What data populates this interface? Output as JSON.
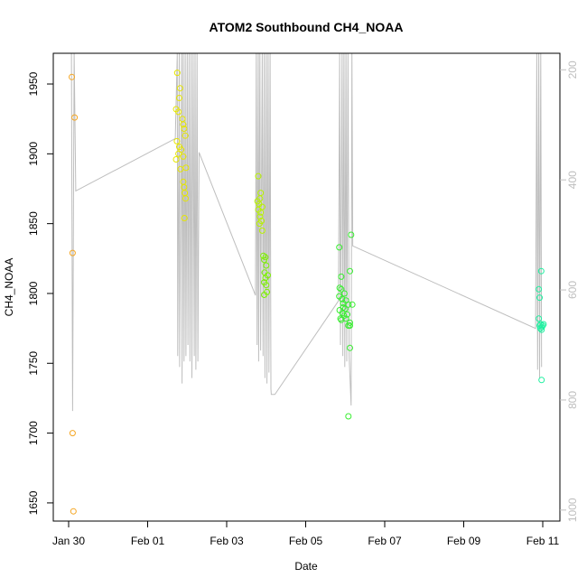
{
  "chart_data": {
    "type": "scatter",
    "title": "ATOM2 Southbound CH4_NOAA",
    "xlabel": "Date",
    "ylabel": "CH4_NOAA",
    "x_ticks": [
      {
        "label": "Jan 30",
        "day": 0
      },
      {
        "label": "Feb 01",
        "day": 2
      },
      {
        "label": "Feb 03",
        "day": 4
      },
      {
        "label": "Feb 05",
        "day": 6
      },
      {
        "label": "Feb 07",
        "day": 8
      },
      {
        "label": "Feb 09",
        "day": 10
      },
      {
        "label": "Feb 11",
        "day": 12
      }
    ],
    "y_ticks": [
      1650,
      1700,
      1750,
      1800,
      1850,
      1900,
      1950
    ],
    "ylim": [
      1637,
      1972
    ],
    "y2_ticks": [
      200,
      400,
      600,
      800,
      1000
    ],
    "y2lim": [
      170,
      1020
    ],
    "y2_reversed": true,
    "y2_tick_color": "#bebebe",
    "line_color": "#bebebe",
    "grid": false,
    "series": [
      {
        "color": "#f5a623",
        "points": [
          [
            0.08,
            1955
          ],
          [
            0.15,
            1926
          ],
          [
            0.1,
            1829
          ],
          [
            0.1,
            1700
          ],
          [
            0.12,
            1644
          ]
        ]
      },
      {
        "color": "#e6e600",
        "points": [
          [
            2.75,
            1958
          ],
          [
            2.82,
            1947
          ],
          [
            2.8,
            1940
          ],
          [
            2.72,
            1932
          ],
          [
            2.78,
            1930
          ],
          [
            2.88,
            1925
          ],
          [
            2.9,
            1921
          ],
          [
            2.92,
            1918
          ],
          [
            2.95,
            1913
          ],
          [
            2.74,
            1909
          ],
          [
            2.8,
            1905
          ],
          [
            2.85,
            1903
          ],
          [
            2.78,
            1900
          ],
          [
            2.9,
            1898
          ],
          [
            2.72,
            1896
          ],
          [
            2.83,
            1889
          ],
          [
            2.97,
            1890
          ],
          [
            2.9,
            1880
          ],
          [
            2.92,
            1876
          ],
          [
            2.94,
            1872
          ],
          [
            2.96,
            1868
          ],
          [
            2.93,
            1854
          ]
        ]
      },
      {
        "color": "#b8f200",
        "points": [
          [
            4.8,
            1884
          ],
          [
            4.86,
            1872
          ],
          [
            4.84,
            1868
          ],
          [
            4.78,
            1866
          ],
          [
            4.82,
            1864
          ],
          [
            4.9,
            1862
          ],
          [
            4.8,
            1860
          ],
          [
            4.86,
            1858
          ],
          [
            4.84,
            1855
          ],
          [
            4.88,
            1852
          ],
          [
            4.83,
            1850
          ],
          [
            4.9,
            1845
          ]
        ]
      },
      {
        "color": "#7cf000",
        "points": [
          [
            4.93,
            1827
          ],
          [
            4.98,
            1826
          ],
          [
            4.95,
            1824
          ],
          [
            5.0,
            1820
          ],
          [
            4.96,
            1815
          ],
          [
            5.04,
            1813
          ],
          [
            4.98,
            1811
          ],
          [
            4.95,
            1808
          ],
          [
            5.0,
            1806
          ],
          [
            5.02,
            1801
          ],
          [
            4.95,
            1799
          ]
        ]
      },
      {
        "color": "#38ee30",
        "points": [
          [
            6.85,
            1833
          ],
          [
            7.15,
            1842
          ],
          [
            7.12,
            1816
          ],
          [
            6.9,
            1812
          ],
          [
            6.86,
            1804
          ],
          [
            6.9,
            1803
          ],
          [
            6.98,
            1800
          ],
          [
            6.85,
            1798
          ],
          [
            6.92,
            1796
          ],
          [
            7.02,
            1795
          ],
          [
            6.95,
            1793
          ],
          [
            7.08,
            1792
          ],
          [
            7.18,
            1792
          ],
          [
            6.95,
            1790
          ],
          [
            7.0,
            1789
          ],
          [
            6.86,
            1788
          ],
          [
            6.93,
            1786
          ],
          [
            7.05,
            1785
          ],
          [
            6.97,
            1784
          ],
          [
            6.88,
            1782
          ],
          [
            7.02,
            1782
          ],
          [
            6.9,
            1781
          ],
          [
            7.12,
            1779
          ],
          [
            7.08,
            1777
          ],
          [
            7.12,
            1777
          ],
          [
            7.12,
            1761
          ],
          [
            7.08,
            1712
          ]
        ]
      },
      {
        "color": "#1ff0a0",
        "points": [
          [
            11.96,
            1816
          ],
          [
            11.9,
            1803
          ],
          [
            11.92,
            1797
          ],
          [
            11.9,
            1782
          ],
          [
            12.02,
            1778
          ],
          [
            11.95,
            1778
          ],
          [
            11.92,
            1777
          ],
          [
            11.98,
            1776
          ],
          [
            12.0,
            1777
          ],
          [
            11.94,
            1775
          ],
          [
            11.97,
            1774
          ],
          [
            11.97,
            1738
          ]
        ]
      }
    ],
    "flight_track": [
      [
        0.07,
        170
      ],
      [
        0.1,
        820
      ],
      [
        0.14,
        170
      ],
      [
        0.18,
        420
      ],
      [
        2.7,
        325
      ],
      [
        2.75,
        170
      ],
      [
        2.76,
        720
      ],
      [
        2.8,
        170
      ],
      [
        2.81,
        740
      ],
      [
        2.86,
        170
      ],
      [
        2.87,
        770
      ],
      [
        2.9,
        170
      ],
      [
        2.92,
        730
      ],
      [
        2.95,
        170
      ],
      [
        2.97,
        720
      ],
      [
        3.0,
        170
      ],
      [
        3.02,
        700
      ],
      [
        3.05,
        170
      ],
      [
        3.07,
        730
      ],
      [
        3.1,
        170
      ],
      [
        3.12,
        760
      ],
      [
        3.15,
        170
      ],
      [
        3.18,
        720
      ],
      [
        3.2,
        170
      ],
      [
        3.22,
        745
      ],
      [
        3.25,
        170
      ],
      [
        3.27,
        730
      ],
      [
        3.3,
        350
      ],
      [
        4.73,
        610
      ],
      [
        4.75,
        170
      ],
      [
        4.77,
        700
      ],
      [
        4.8,
        170
      ],
      [
        4.81,
        730
      ],
      [
        4.84,
        170
      ],
      [
        4.86,
        710
      ],
      [
        4.9,
        170
      ],
      [
        4.92,
        720
      ],
      [
        4.95,
        170
      ],
      [
        4.97,
        760
      ],
      [
        5.0,
        170
      ],
      [
        5.02,
        770
      ],
      [
        5.05,
        170
      ],
      [
        5.07,
        750
      ],
      [
        5.1,
        170
      ],
      [
        5.12,
        780
      ],
      [
        5.13,
        790
      ],
      [
        5.22,
        790
      ],
      [
        6.83,
        620
      ],
      [
        6.86,
        170
      ],
      [
        6.88,
        700
      ],
      [
        6.92,
        170
      ],
      [
        6.94,
        720
      ],
      [
        6.97,
        170
      ],
      [
        6.99,
        740
      ],
      [
        7.02,
        170
      ],
      [
        7.04,
        730
      ],
      [
        7.07,
        170
      ],
      [
        7.1,
        720
      ],
      [
        7.15,
        810
      ],
      [
        7.17,
        170
      ],
      [
        7.19,
        520
      ],
      [
        11.82,
        670
      ],
      [
        11.85,
        170
      ],
      [
        11.87,
        745
      ],
      [
        11.9,
        170
      ],
      [
        11.92,
        760
      ],
      [
        11.95,
        170
      ],
      [
        11.97,
        740
      ]
    ]
  }
}
